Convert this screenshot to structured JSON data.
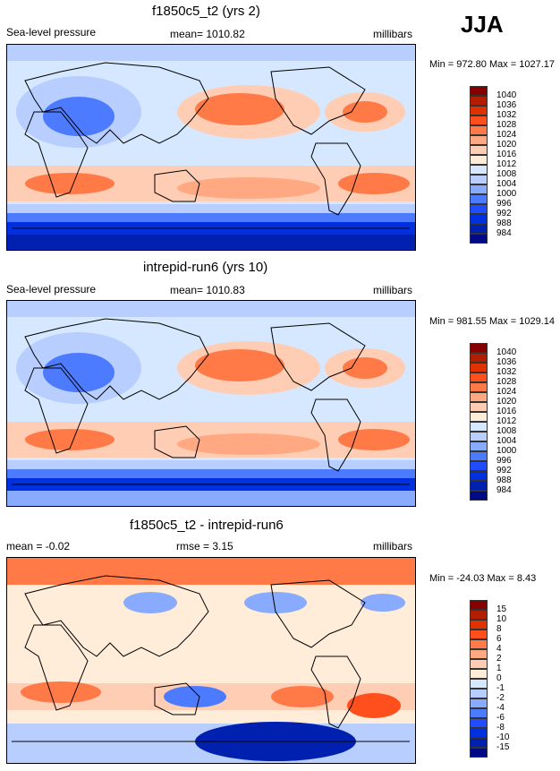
{
  "season": "JJA",
  "colors": [
    "#870000",
    "#b31e00",
    "#e03200",
    "#ff4f1c",
    "#ff7a47",
    "#ffa882",
    "#ffcdb4",
    "#ffecd9",
    "#d6e8ff",
    "#b7ceff",
    "#88aaff",
    "#4d7bff",
    "#1f4dff",
    "#0030e0",
    "#0020b0",
    "#000a88"
  ],
  "chart_data": [
    {
      "type": "heatmap",
      "title": "f1850c5_t2 (yrs 2)",
      "left_label": "Sea-level pressure",
      "center_label": "mean= 1010.82",
      "units": "millibars",
      "minmax": "Min = 972.80 Max = 1027.17",
      "levels": [
        "1040",
        "1036",
        "1032",
        "1028",
        "1024",
        "1020",
        "1016",
        "1012",
        "1008",
        "1004",
        "1000",
        "996",
        "992",
        "988",
        "984"
      ]
    },
    {
      "type": "heatmap",
      "title": "intrepid-run6 (yrs 10)",
      "left_label": "Sea-level pressure",
      "center_label": "mean= 1010.83",
      "units": "millibars",
      "minmax": "Min = 981.55 Max = 1029.14",
      "levels": [
        "1040",
        "1036",
        "1032",
        "1028",
        "1024",
        "1020",
        "1016",
        "1012",
        "1008",
        "1004",
        "1000",
        "996",
        "992",
        "988",
        "984"
      ]
    },
    {
      "type": "heatmap",
      "title": "f1850c5_t2 - intrepid-run6",
      "left_label": "mean =  -0.02",
      "center_label": "rmse =   3.15",
      "units": "millibars",
      "minmax": "Min = -24.03 Max =   8.43",
      "levels": [
        "15",
        "10",
        "8",
        "6",
        "4",
        "2",
        "1",
        "0",
        "-1",
        "-2",
        "-4",
        "-6",
        "-8",
        "-10",
        "-15"
      ]
    }
  ]
}
